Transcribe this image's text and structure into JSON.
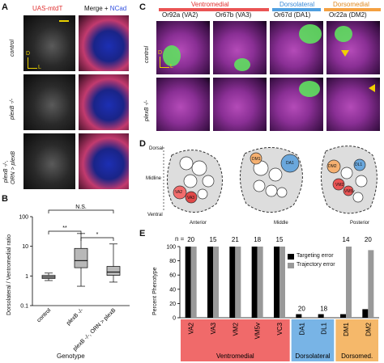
{
  "panels": {
    "A": "A",
    "B": "B",
    "C": "C",
    "D": "D",
    "E": "E"
  },
  "panelA": {
    "col_red": "UAS-mtdT",
    "col_merge": "Merge + ",
    "col_ncad": "NCad",
    "rows": [
      "control",
      "plexB -/-",
      "plexB -/-,",
      "ORN > plexB"
    ],
    "axis_d": "D",
    "axis_l": "L"
  },
  "panelB": {
    "ylabel": "Dorsolateral / Ventromedial ratio",
    "xlabel": "Genotype",
    "ns": "N.S.",
    "sig1": "**",
    "sig2": "*",
    "yticks": [
      "100",
      "10",
      "1",
      "0.1"
    ],
    "categories": [
      "control",
      "plexB -/-",
      "plexB -/-, ORN > plexB"
    ]
  },
  "panelC": {
    "header_ventromedial": "Ventromedial",
    "header_dorsolateral": "Dorsolateral",
    "header_dorsomedial": "Dorsomedial",
    "cols": [
      "Or92a (VA2)",
      "Or67b (VA3)",
      "Or67d (DA1)",
      "Or22a (DM2)"
    ],
    "rows": [
      "control",
      "plexB -/-"
    ],
    "axis_d": "D",
    "axis_l": "L"
  },
  "panelD": {
    "dorsal": "Dorsal",
    "midline": "Midline",
    "ventral": "Ventral",
    "anterior": "Anterior",
    "middle": "Middle",
    "posterior": "Posterior",
    "glom": [
      "VA2",
      "VA3",
      "VM2",
      "VM5d",
      "VM5v",
      "VC3",
      "DA1",
      "DL1",
      "DM1",
      "DM2"
    ]
  },
  "panelE": {
    "n_label": "n =",
    "legend": [
      "Targeting error",
      "Trajectory error"
    ],
    "group_labels": [
      "Ventromedial",
      "Dorsolateral",
      "Dorsomed."
    ],
    "ylabel": "Percent Phenotype",
    "yticks": [
      "100",
      "80",
      "60",
      "40",
      "20",
      "0"
    ]
  },
  "chart_data": [
    {
      "type": "box",
      "title": "",
      "ylabel": "Dorsolateral / Ventromedial ratio",
      "xlabel": "Genotype",
      "yscale": "log",
      "ylim": [
        0.1,
        100
      ],
      "categories": [
        "control",
        "plexB -/-",
        "plexB -/-, ORN > plexB"
      ],
      "boxes": [
        {
          "min": 0.7,
          "q1": 0.82,
          "median": 0.92,
          "q3": 1.05,
          "max": 1.25
        },
        {
          "min": 0.45,
          "q1": 1.9,
          "median": 3.3,
          "q3": 8.5,
          "max": 27
        },
        {
          "min": 0.62,
          "q1": 1.05,
          "median": 1.35,
          "q3": 2.1,
          "max": 12
        }
      ],
      "annotations": [
        "**",
        "*",
        "N.S."
      ]
    },
    {
      "type": "bar",
      "title": "",
      "ylabel": "Percent Phenotype",
      "ylim": [
        0,
        100
      ],
      "categories": [
        "VA2",
        "VA3",
        "VM2",
        "VM5v",
        "VC3",
        "DA1",
        "DL1",
        "DM1",
        "DM2"
      ],
      "n": [
        "20",
        "15",
        "21",
        "18",
        "15",
        "20",
        "18",
        "14",
        "20"
      ],
      "series": [
        {
          "name": "Targeting error",
          "values": [
            100,
            100,
            100,
            100,
            100,
            5,
            5,
            5,
            12
          ]
        },
        {
          "name": "Trajectory error",
          "values": [
            100,
            100,
            100,
            100,
            100,
            0,
            0,
            100,
            95
          ]
        }
      ],
      "groups": [
        {
          "name": "Ventromedial",
          "categories": [
            "VA2",
            "VA3",
            "VM2",
            "VM5v",
            "VC3"
          ],
          "color": "#f06a6a"
        },
        {
          "name": "Dorsolateral",
          "categories": [
            "DA1",
            "DL1"
          ],
          "color": "#78b4e6"
        },
        {
          "name": "Dorsomed.",
          "categories": [
            "DM1",
            "DM2"
          ],
          "color": "#f5b86a"
        }
      ]
    }
  ],
  "colors": {
    "ventromedial": "#ea5454",
    "dorsolateral": "#4f9fe0",
    "dorsomedial": "#f4a040",
    "target": "#000000",
    "trajectory": "#999999"
  }
}
